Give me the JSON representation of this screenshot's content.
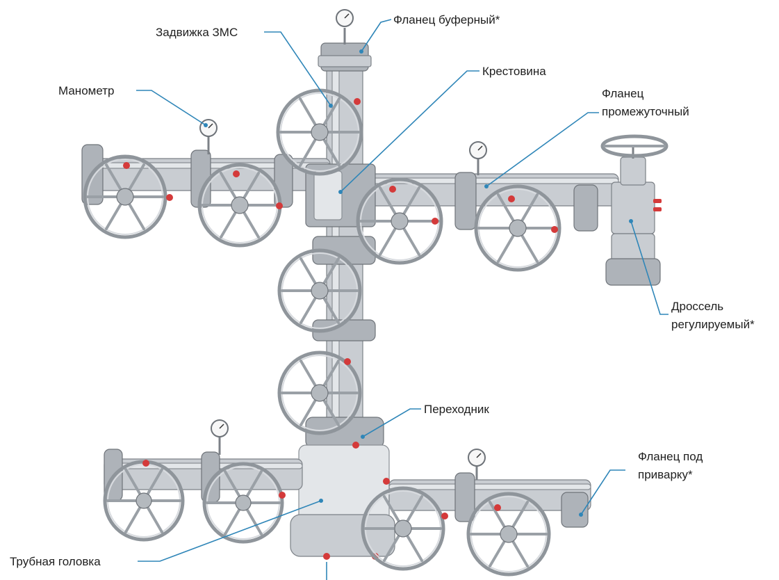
{
  "colors": {
    "leader": "#2f86b8",
    "steel": "#c9cdd2",
    "bolt_accent": "#d43a3a",
    "label_text": "#1e1e1e"
  },
  "labels": {
    "zadvizhka": "Задвижка ЗМС",
    "flanec_bufernyi": "Фланец буферный*",
    "krestovina": "Крестовина",
    "manometr": "Манометр",
    "flanec_promezhutochnyi_1": "Фланец",
    "flanec_promezhutochnyi_2": "промежуточный",
    "drossel_1": "Дроссель",
    "drossel_2": "регулируемый*",
    "perekhodnik": "Переходник",
    "flanec_pod_privarku_1": "Фланец под",
    "flanec_pod_privarku_2": "приварку*",
    "trubnaya_golovka": "Трубная головка"
  }
}
